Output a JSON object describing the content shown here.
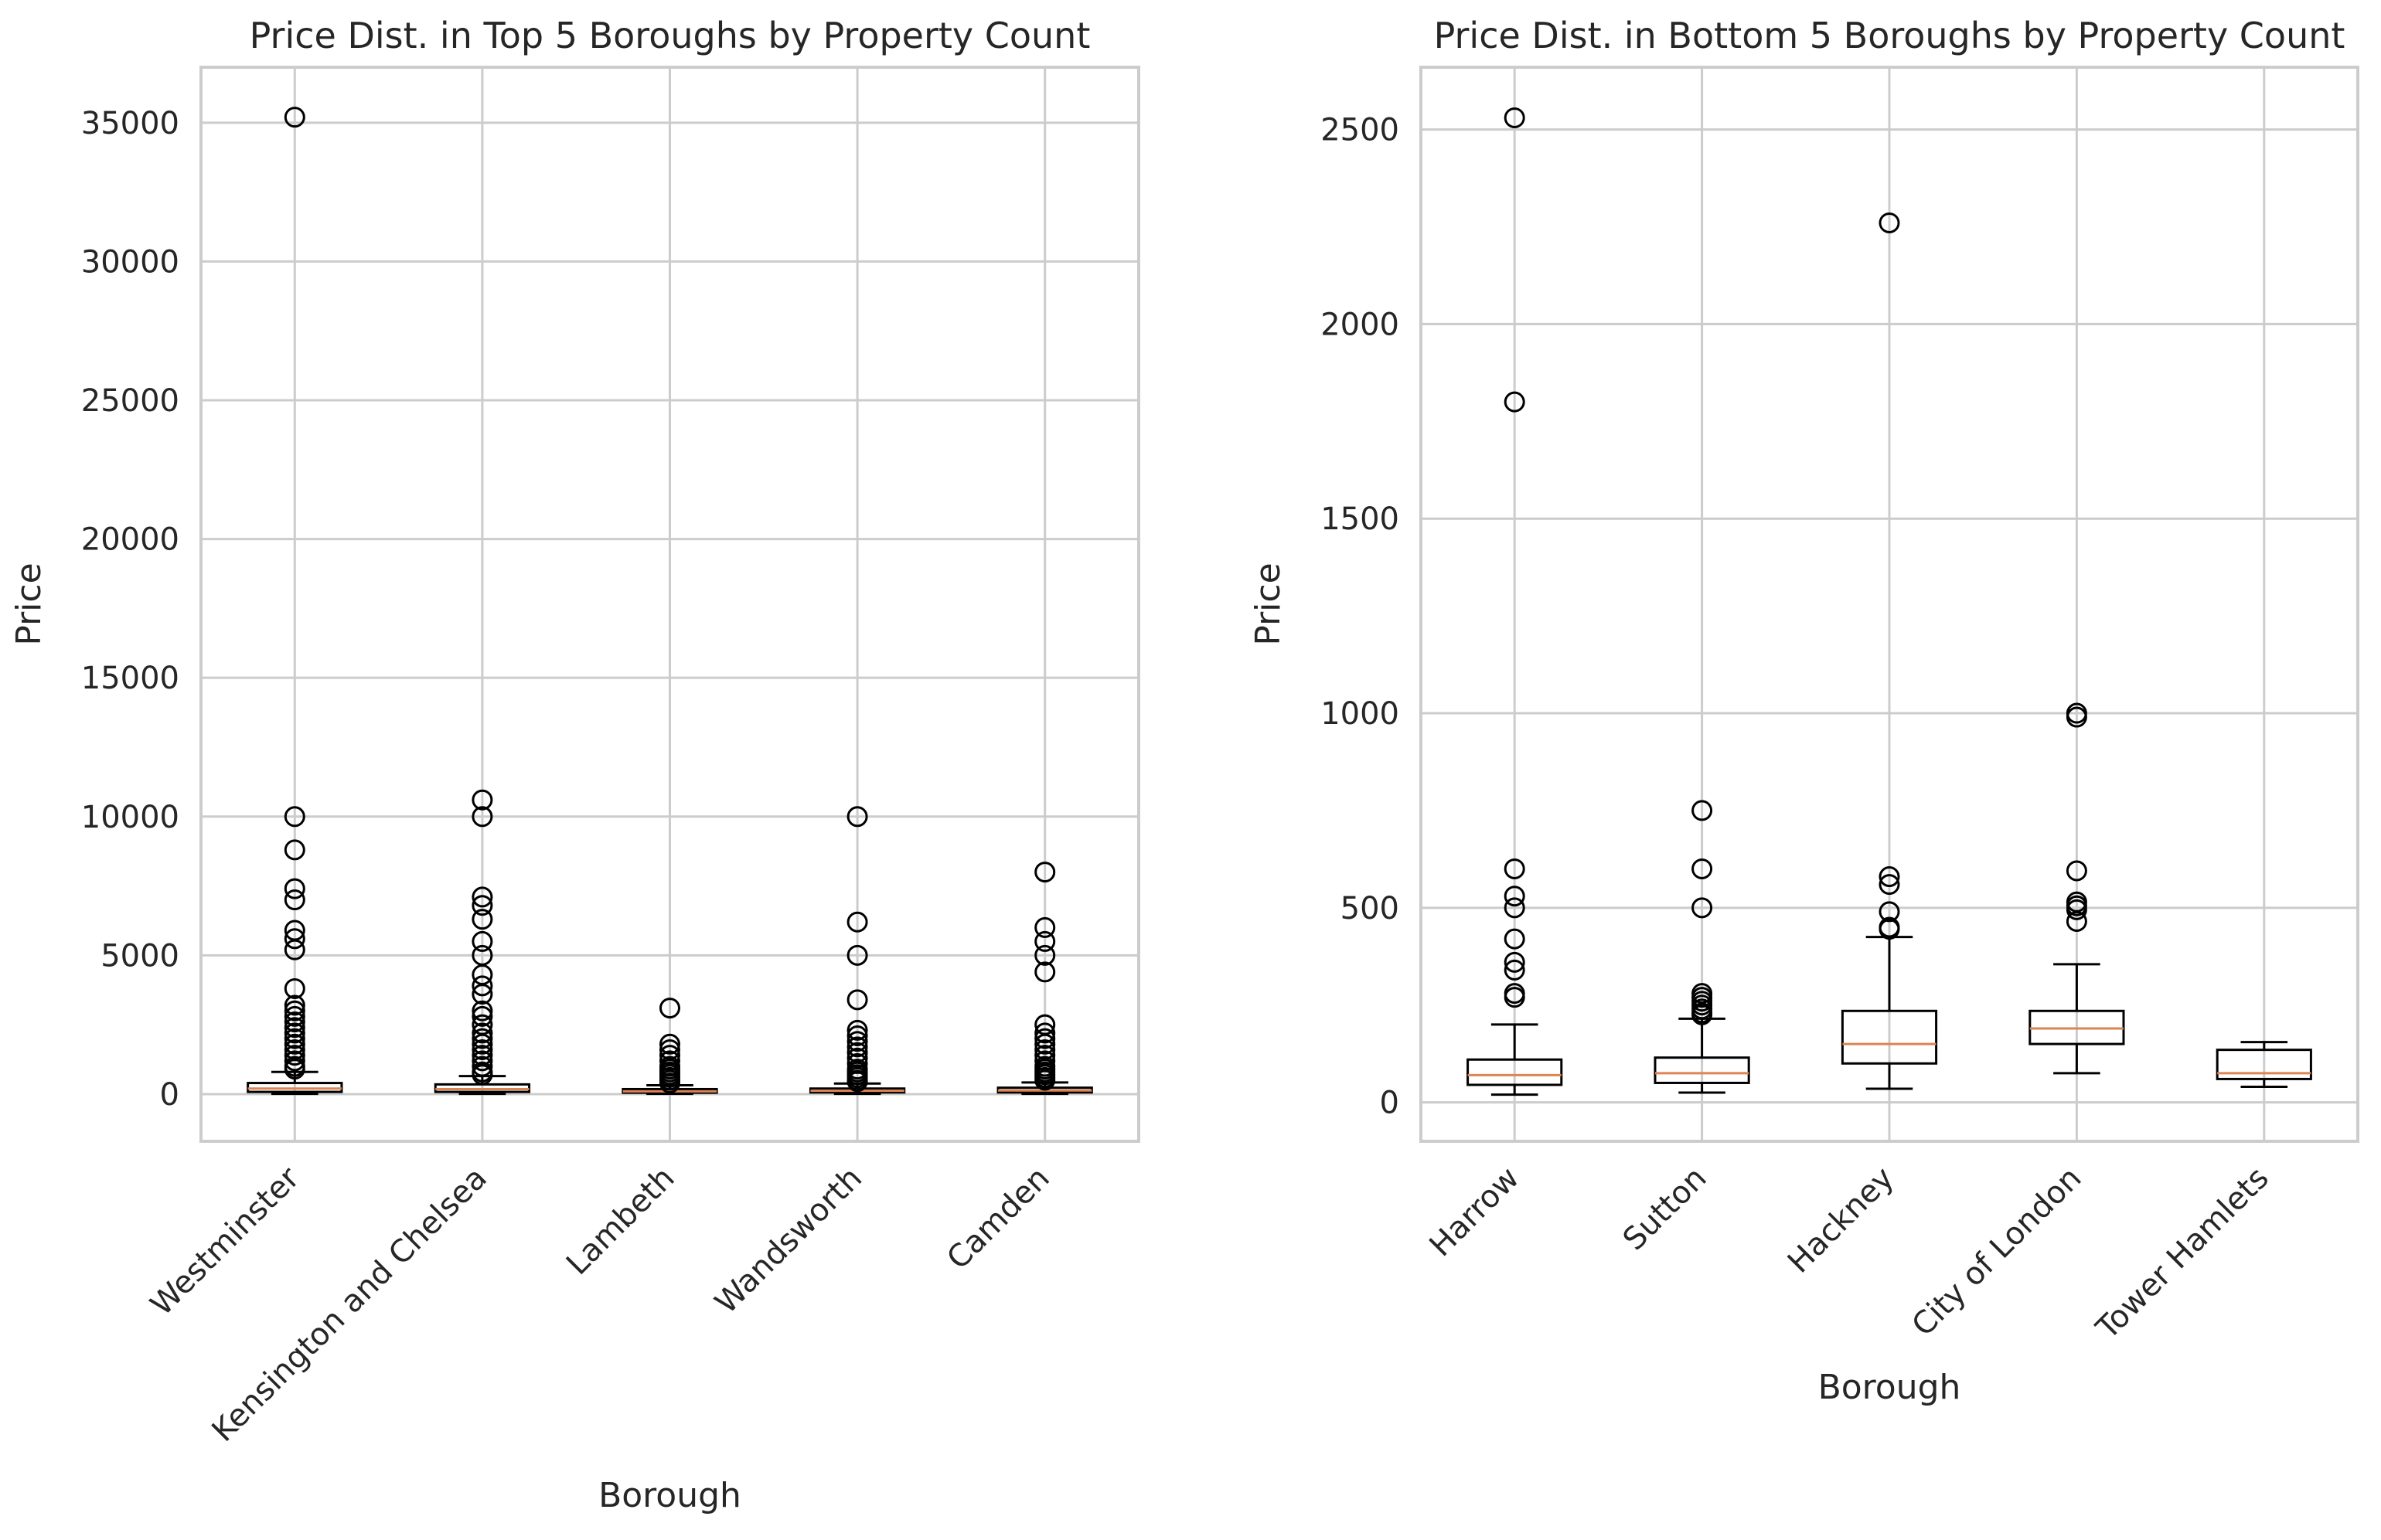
{
  "chart_data": [
    {
      "type": "box",
      "title": "Price Dist. in Top 5 Boroughs by Property Count",
      "xlabel": "Borough",
      "ylabel": "Price",
      "ylim": [
        -1700,
        37000
      ],
      "yticks": [
        0,
        5000,
        10000,
        15000,
        20000,
        25000,
        30000,
        35000
      ],
      "grid": true,
      "categories": [
        "Westminster",
        "Kensington and Chelsea",
        "Lambeth",
        "Wandsworth",
        "Camden"
      ],
      "boxes": [
        {
          "name": "Westminster",
          "whisker_low": 10,
          "q1": 80,
          "median": 200,
          "q3": 400,
          "whisker_high": 800,
          "outliers": [
            35200,
            10000,
            8800,
            7400,
            7000,
            5900,
            5600,
            5200,
            3800,
            3200,
            3000,
            2800,
            2600,
            2400,
            2200,
            2000,
            1800,
            1600,
            1400,
            1200,
            1000,
            900
          ]
        },
        {
          "name": "Kensington and Chelsea",
          "whisker_low": 10,
          "q1": 80,
          "median": 180,
          "q3": 350,
          "whisker_high": 650,
          "outliers": [
            10600,
            10000,
            7100,
            6800,
            6300,
            5500,
            5000,
            4300,
            3900,
            3600,
            3000,
            2800,
            2500,
            2200,
            2000,
            1800,
            1600,
            1400,
            1200,
            1000,
            800,
            700
          ]
        },
        {
          "name": "Lambeth",
          "whisker_low": 10,
          "q1": 50,
          "median": 100,
          "q3": 180,
          "whisker_high": 320,
          "outliers": [
            3100,
            1800,
            1600,
            1400,
            1200,
            1000,
            900,
            800,
            700,
            600,
            500,
            400
          ]
        },
        {
          "name": "Wandsworth",
          "whisker_low": 10,
          "q1": 60,
          "median": 120,
          "q3": 200,
          "whisker_high": 380,
          "outliers": [
            10000,
            6200,
            5000,
            3400,
            2300,
            2100,
            1900,
            1700,
            1500,
            1300,
            1100,
            900,
            800,
            700,
            600,
            500,
            450
          ]
        },
        {
          "name": "Camden",
          "whisker_low": 10,
          "q1": 60,
          "median": 130,
          "q3": 230,
          "whisker_high": 420,
          "outliers": [
            8000,
            6000,
            5500,
            5000,
            4400,
            2500,
            2200,
            2000,
            1800,
            1600,
            1400,
            1200,
            1000,
            900,
            800,
            700,
            600,
            500
          ]
        }
      ]
    },
    {
      "type": "box",
      "title": "Price Dist. in Bottom 5 Boroughs by Property Count",
      "xlabel": "Borough",
      "ylabel": "Price",
      "ylim": [
        -100,
        2660
      ],
      "yticks": [
        0,
        500,
        1000,
        1500,
        2000,
        2500
      ],
      "grid": true,
      "categories": [
        "Harrow",
        "Sutton",
        "Hackney",
        "City of London",
        "Tower Hamlets"
      ],
      "boxes": [
        {
          "name": "Harrow",
          "whisker_low": 20,
          "q1": 45,
          "median": 70,
          "q3": 110,
          "whisker_high": 200,
          "outliers": [
            2530,
            1800,
            600,
            530,
            500,
            420,
            360,
            340,
            280,
            270
          ]
        },
        {
          "name": "Sutton",
          "whisker_low": 25,
          "q1": 50,
          "median": 75,
          "q3": 115,
          "whisker_high": 215,
          "outliers": [
            750,
            600,
            500,
            280,
            270,
            260,
            250,
            240,
            230,
            225
          ]
        },
        {
          "name": "Hackney",
          "whisker_low": 35,
          "q1": 100,
          "median": 150,
          "q3": 235,
          "whisker_high": 425,
          "outliers": [
            2260,
            580,
            560,
            490,
            450,
            445
          ]
        },
        {
          "name": "City of London",
          "whisker_low": 75,
          "q1": 150,
          "median": 190,
          "q3": 235,
          "whisker_high": 355,
          "outliers": [
            1000,
            990,
            595,
            515,
            505,
            495,
            465
          ]
        },
        {
          "name": "Tower Hamlets",
          "whisker_low": 40,
          "q1": 60,
          "median": 75,
          "q3": 135,
          "whisker_high": 155,
          "outliers": []
        }
      ]
    }
  ]
}
